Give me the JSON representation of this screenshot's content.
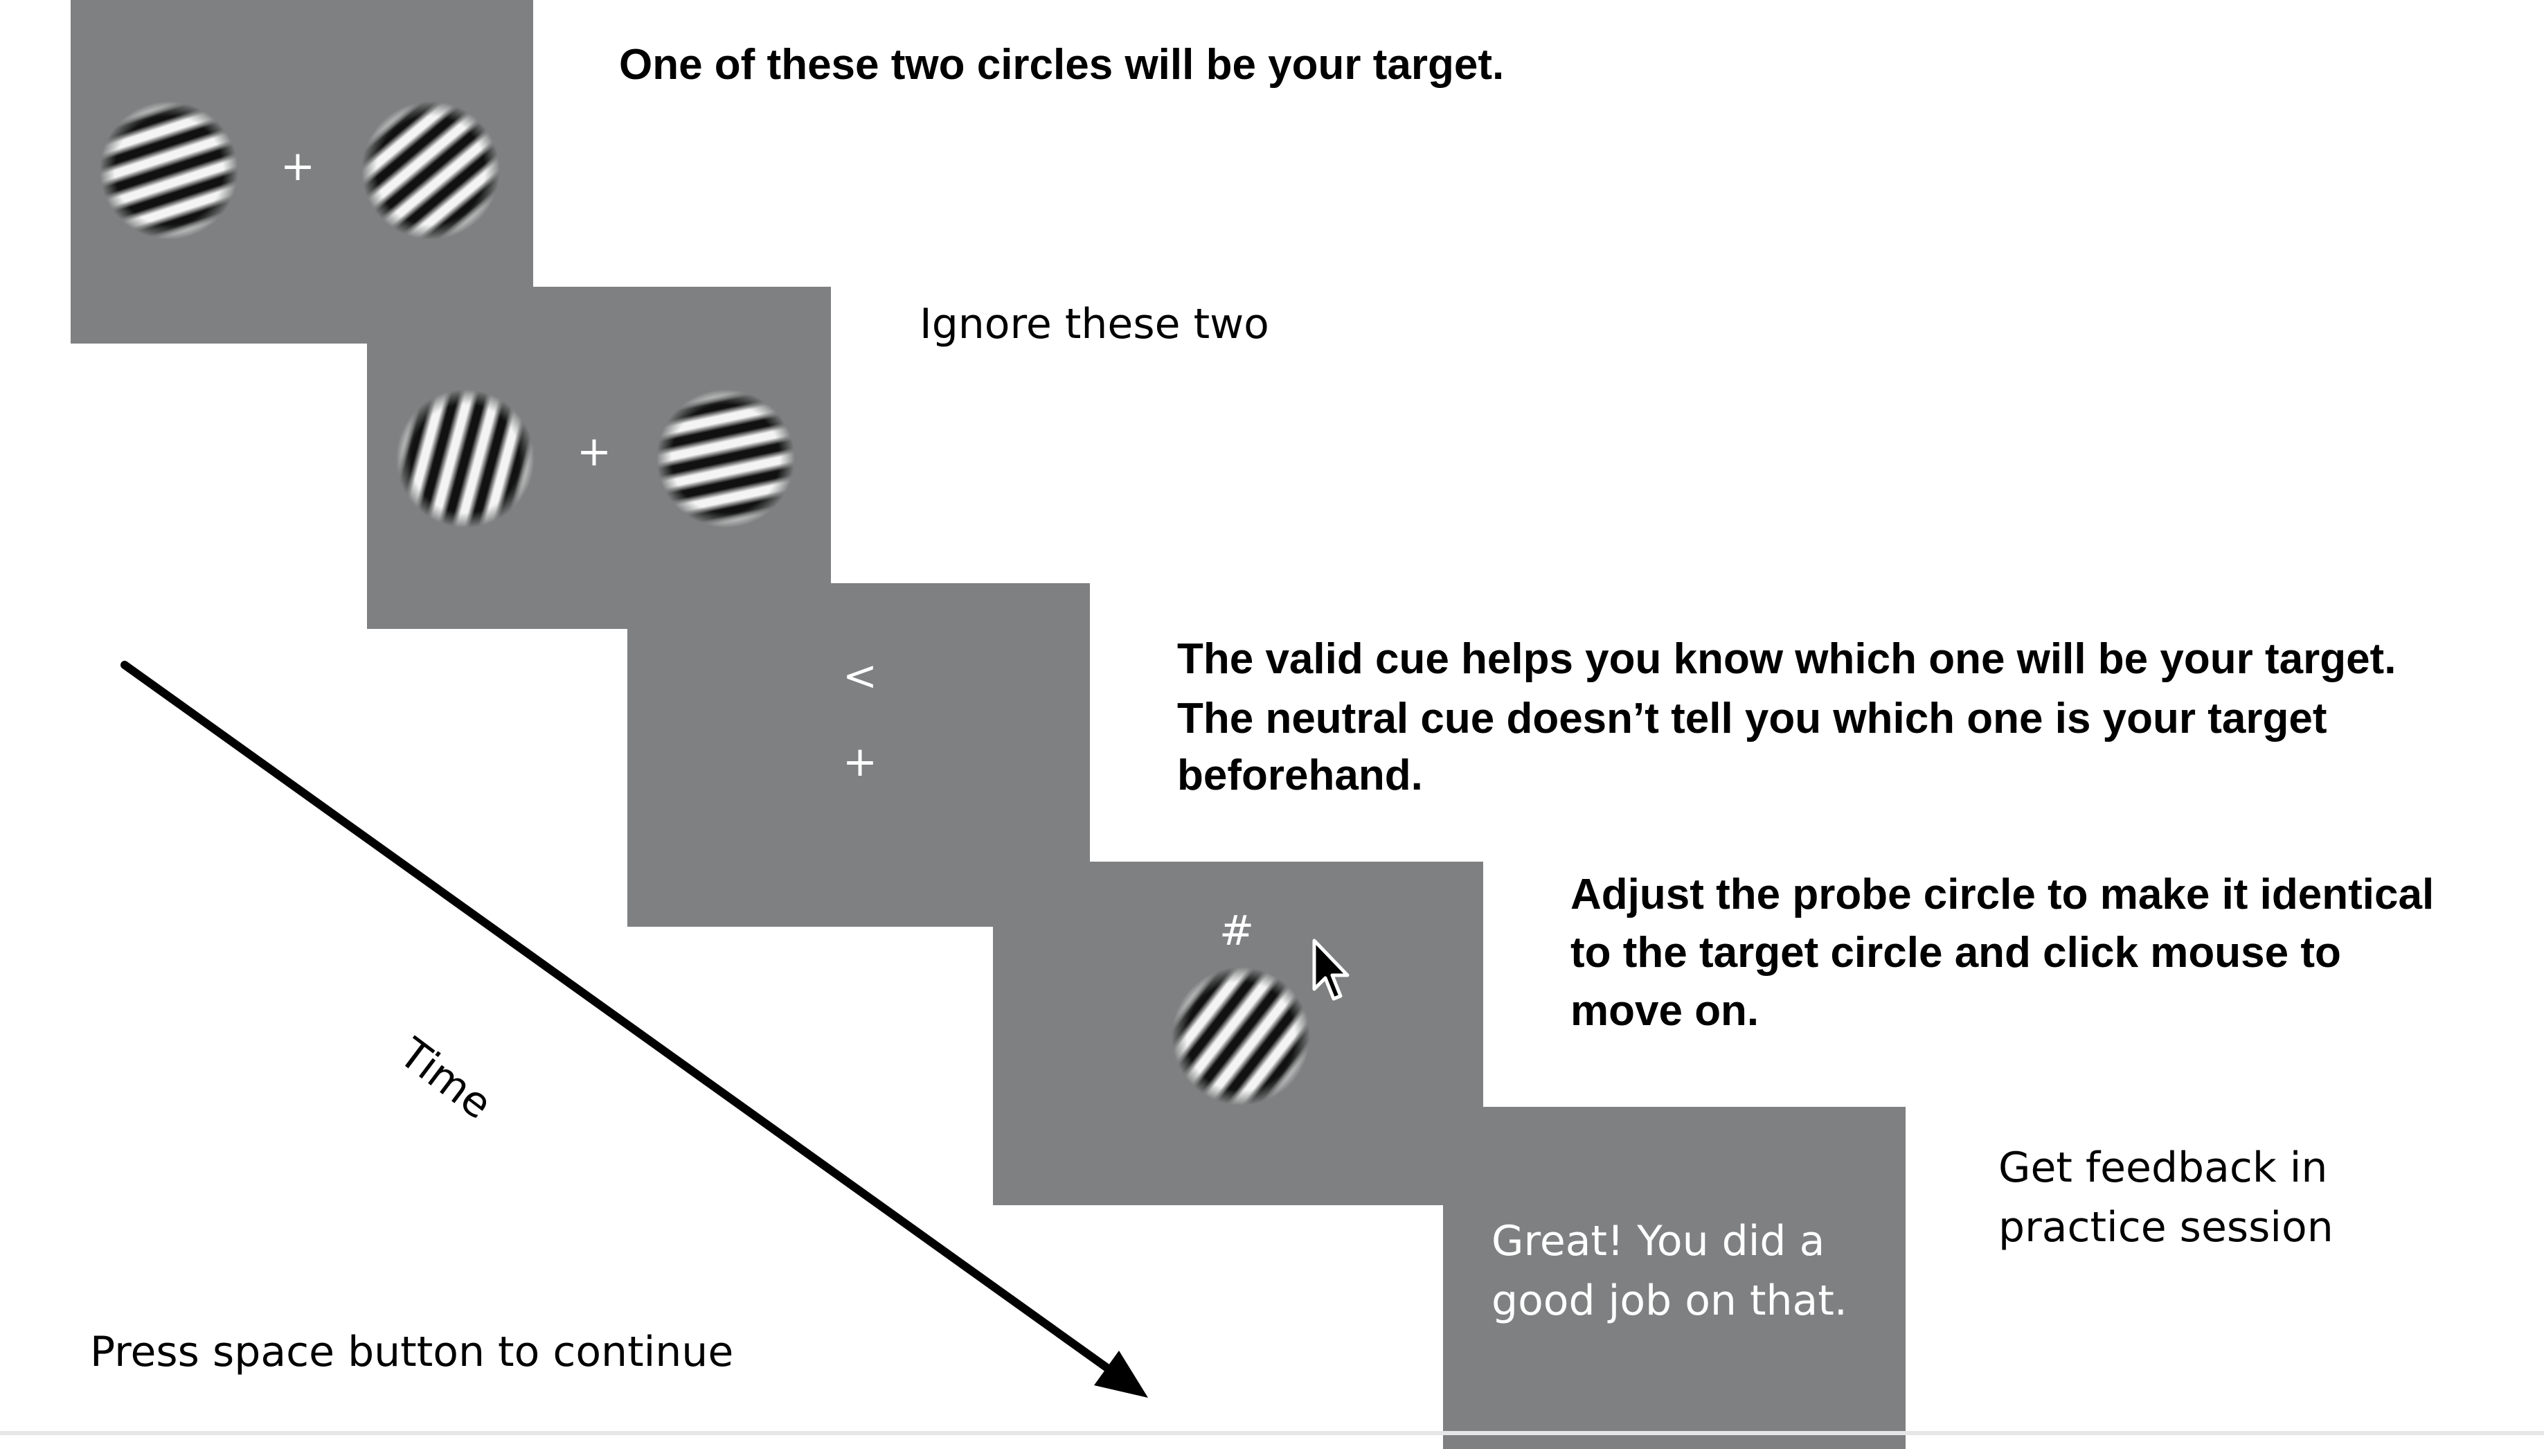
{
  "fixation_symbol": "+",
  "cue_symbol": "<",
  "probe_symbol": "#",
  "captions": {
    "target": "One of these two circles will be your target.",
    "ignore": "Ignore these two",
    "cue_line1": "The valid cue helps you know which one will be your target.",
    "cue_line2": "The neutral cue doesn’t tell you which one is your target",
    "cue_line3": "beforehand.",
    "probe_line1": "Adjust the probe circle to make it identical",
    "probe_line2": "to the target circle and click mouse to",
    "probe_line3": "move on.",
    "feedback_line1": "Get feedback in",
    "feedback_line2": "practice session"
  },
  "feedback_message": {
    "line1": "Great! You did a",
    "line2": "good job on that."
  },
  "time_label": "Time",
  "continue_prompt": "Press space button to continue",
  "colors": {
    "panel": "#7f8081",
    "text": "#000000",
    "stimulus_text": "#ffffff",
    "background": "#ffffff"
  },
  "icons": [
    "mouse-cursor-icon",
    "timeline-arrow-icon",
    "grating-circle-icon"
  ]
}
